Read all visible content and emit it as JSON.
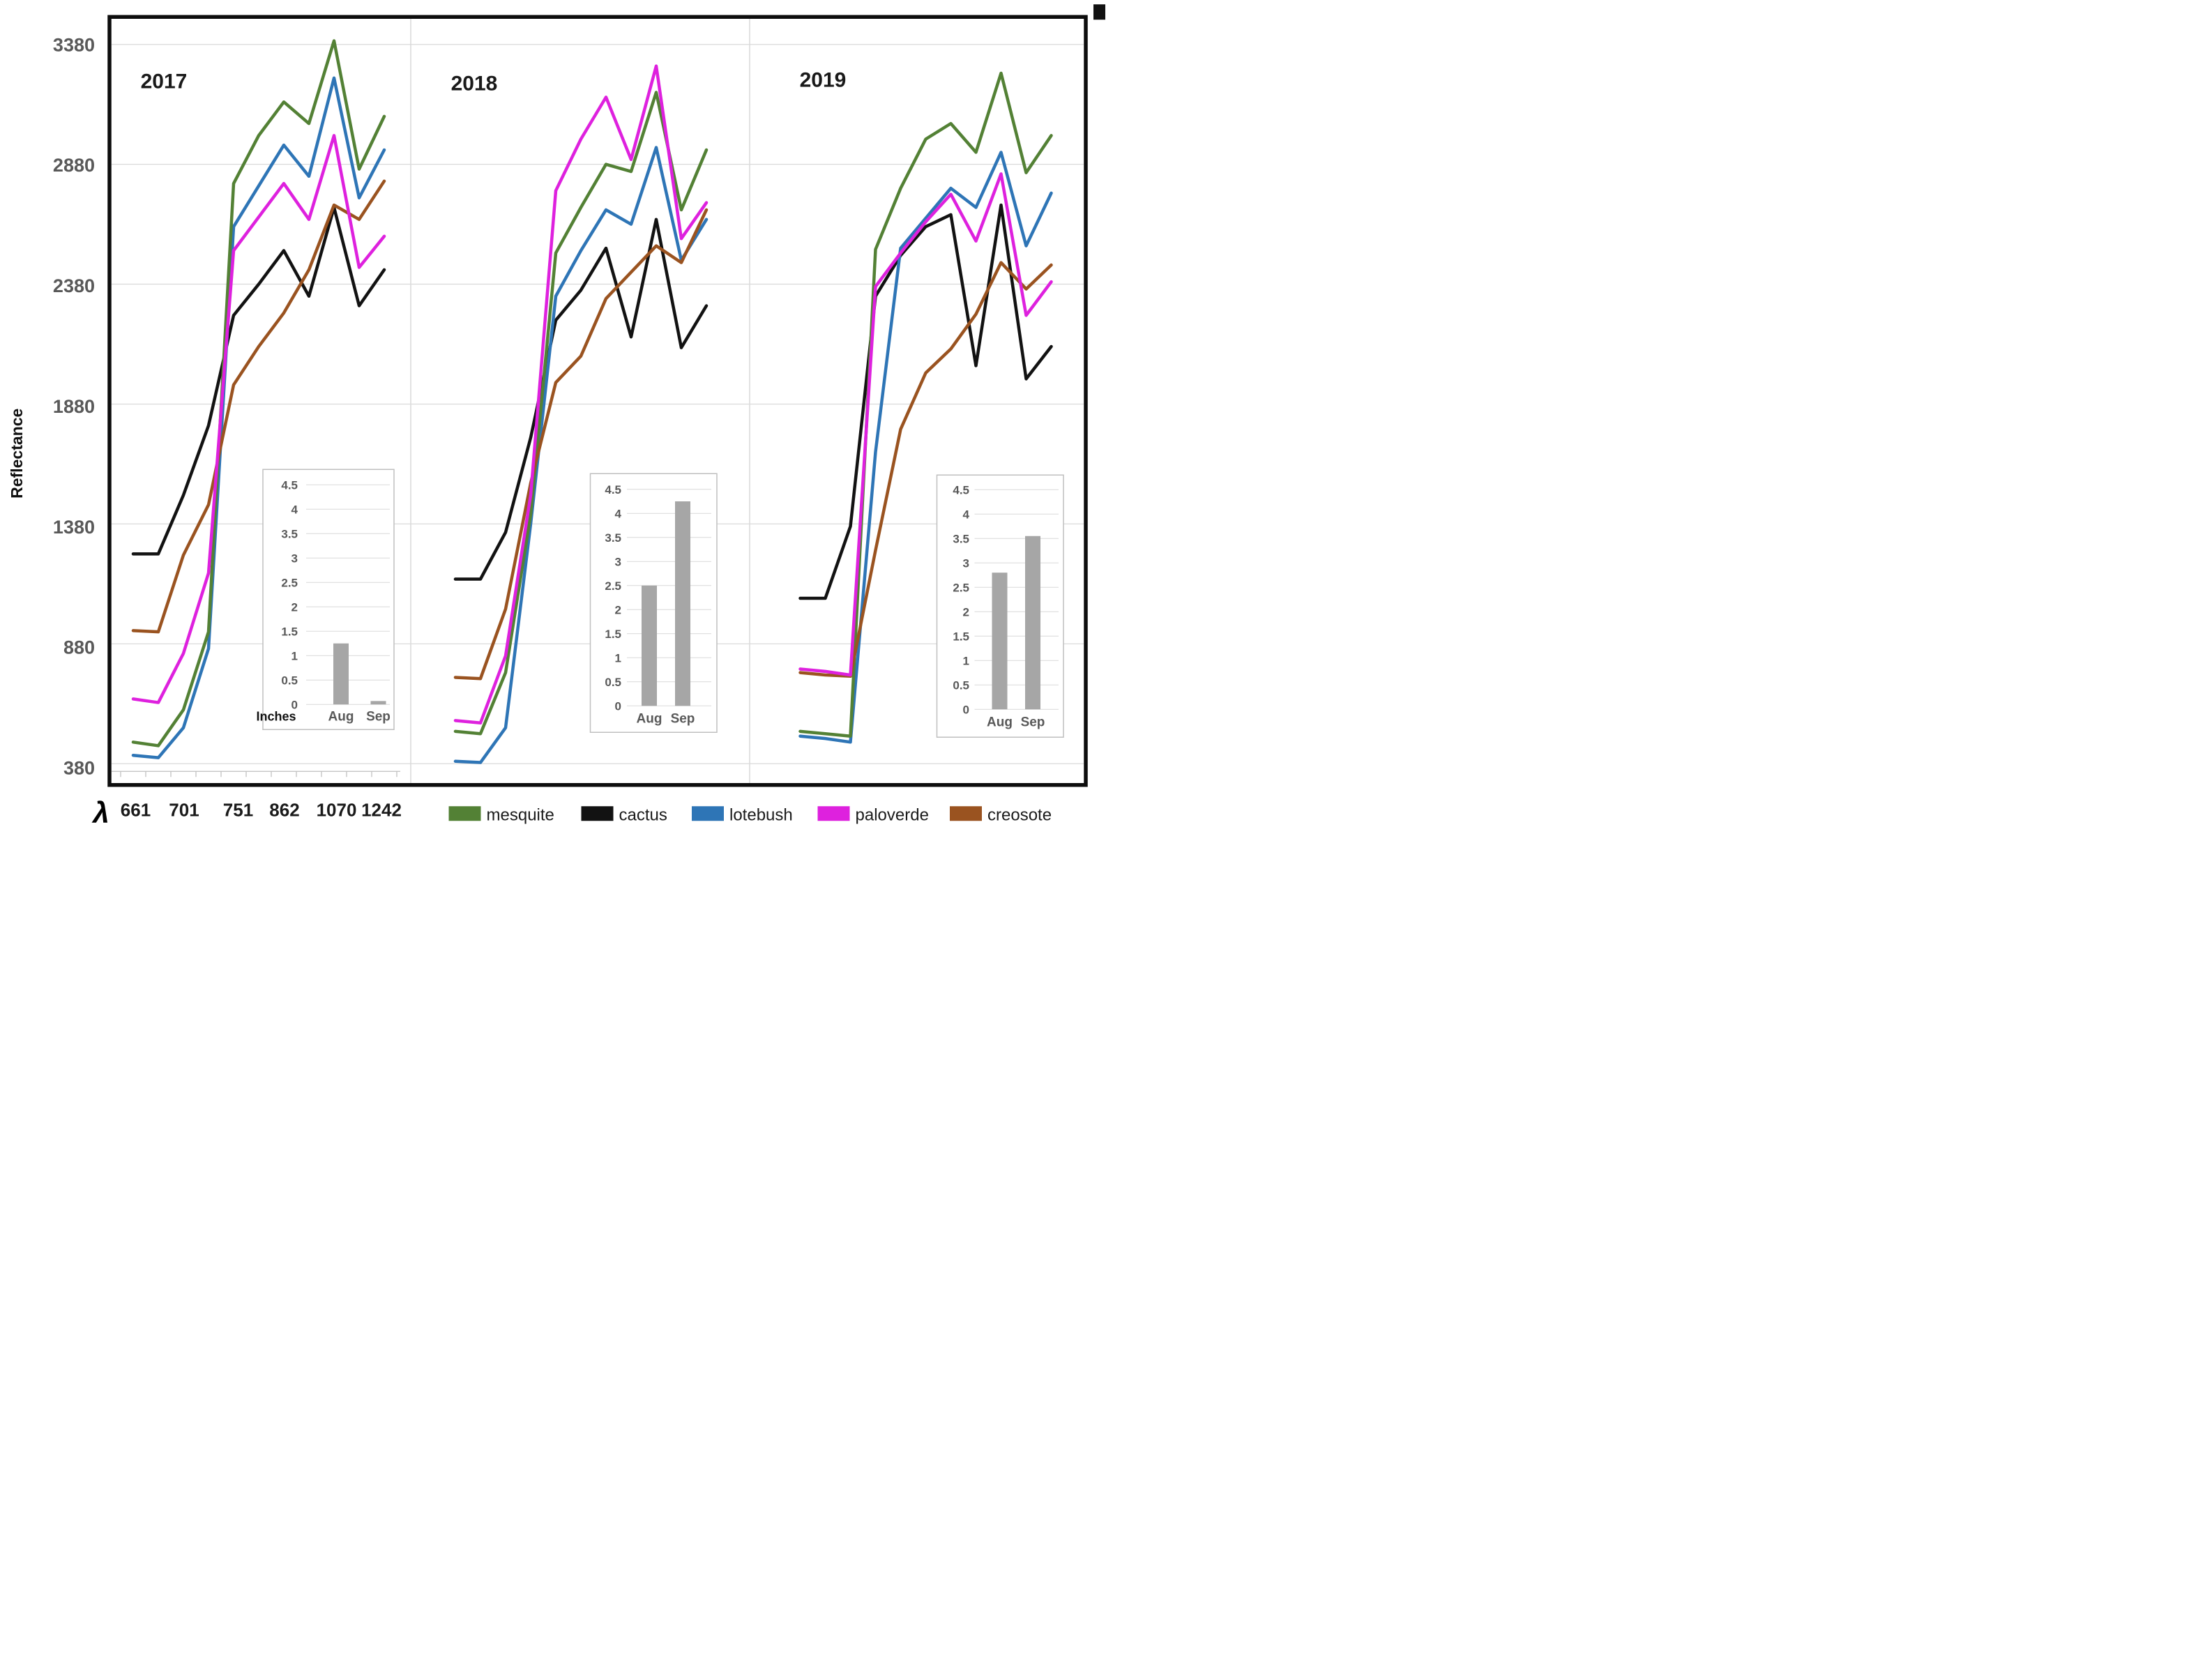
{
  "chart_data": {
    "type": "line",
    "title": "",
    "ylabel": "Reflectance",
    "ylim": [
      380,
      3430
    ],
    "yticks": [
      "3380",
      "2880",
      "2380",
      "1880",
      "1380",
      "880",
      "380"
    ],
    "x_axis_symbol": "λ",
    "x_tick_labels": [
      "661",
      "701",
      "751",
      "862",
      "1070",
      "1242"
    ],
    "grid": "horizontal-light-gray",
    "legend_position": "bottom",
    "series": [
      {
        "name": "mesquite",
        "color": "#538135"
      },
      {
        "name": "cactus",
        "color": "#121212"
      },
      {
        "name": "lotebush",
        "color": "#2E75B6"
      },
      {
        "name": "paloverde",
        "color": "#DE21DE"
      },
      {
        "name": "creosote",
        "color": "#9A5320"
      }
    ],
    "panels": [
      {
        "year": "2017",
        "values": {
          "mesquite": [
            470,
            455,
            605,
            930,
            2800,
            3000,
            3140,
            3050,
            3395,
            2860,
            3080
          ],
          "cactus": [
            1255,
            1255,
            1500,
            1790,
            2250,
            2380,
            2520,
            2330,
            2700,
            2290,
            2440
          ],
          "lotebush": [
            415,
            405,
            530,
            860,
            2620,
            2790,
            2960,
            2830,
            3240,
            2740,
            2940
          ],
          "paloverde": [
            650,
            635,
            840,
            1175,
            2520,
            2660,
            2800,
            2650,
            3000,
            2450,
            2580
          ],
          "creosote": [
            935,
            930,
            1250,
            1460,
            1960,
            2120,
            2260,
            2440,
            2710,
            2650,
            2810
          ]
        },
        "inset": {
          "type": "bar",
          "unit_label": "Inches",
          "categories": [
            "Aug",
            "Sep"
          ],
          "values": [
            1.25,
            0.07
          ],
          "ylim": [
            0,
            4.5
          ],
          "yticks": [
            "4.5",
            "4",
            "3.5",
            "3",
            "2.5",
            "2",
            "1.5",
            "1",
            "0.5",
            "0"
          ],
          "bar_color": "#A6A6A6"
        }
      },
      {
        "year": "2018",
        "values": {
          "mesquite": [
            515,
            505,
            760,
            1420,
            2510,
            2700,
            2880,
            2850,
            3180,
            2690,
            2940
          ],
          "cactus": [
            1150,
            1150,
            1345,
            1740,
            2230,
            2355,
            2530,
            2160,
            2650,
            2115,
            2290
          ],
          "lotebush": [
            390,
            385,
            530,
            1380,
            2330,
            2520,
            2690,
            2630,
            2950,
            2480,
            2650
          ],
          "paloverde": [
            560,
            550,
            830,
            1500,
            2770,
            2985,
            3160,
            2900,
            3290,
            2570,
            2720
          ],
          "creosote": [
            740,
            735,
            1025,
            1550,
            1970,
            2080,
            2320,
            2430,
            2540,
            2470,
            2690
          ]
        },
        "inset": {
          "type": "bar",
          "unit_label": "",
          "categories": [
            "Aug",
            "Sep"
          ],
          "values": [
            2.5,
            4.25
          ],
          "ylim": [
            0,
            4.5
          ],
          "yticks": [
            "4.5",
            "4",
            "3.5",
            "3",
            "2.5",
            "2",
            "1.5",
            "1",
            "0.5",
            "0"
          ],
          "bar_color": "#A6A6A6"
        }
      },
      {
        "year": "2019",
        "values": {
          "mesquite": [
            515,
            505,
            495,
            2525,
            2780,
            2985,
            3050,
            2930,
            3260,
            2845,
            3000
          ],
          "cactus": [
            1070,
            1070,
            1370,
            2330,
            2500,
            2620,
            2670,
            2040,
            2710,
            1985,
            2120
          ],
          "lotebush": [
            495,
            485,
            470,
            1680,
            2530,
            2655,
            2780,
            2700,
            2930,
            2540,
            2760
          ],
          "paloverde": [
            775,
            765,
            750,
            2370,
            2510,
            2640,
            2755,
            2560,
            2840,
            2250,
            2390
          ],
          "creosote": [
            760,
            750,
            745,
            1270,
            1775,
            2010,
            2110,
            2255,
            2470,
            2360,
            2460
          ]
        },
        "inset": {
          "type": "bar",
          "unit_label": "",
          "categories": [
            "Aug",
            "Sep"
          ],
          "values": [
            2.8,
            3.55
          ],
          "ylim": [
            0,
            4.5
          ],
          "yticks": [
            "4.5",
            "4",
            "3.5",
            "3",
            "2.5",
            "2",
            "1.5",
            "1",
            "0.5",
            "0"
          ],
          "bar_color": "#A6A6A6"
        }
      }
    ]
  }
}
